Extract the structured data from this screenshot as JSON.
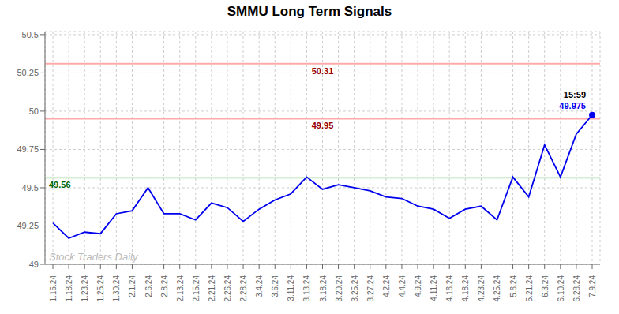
{
  "chart_data": {
    "type": "line",
    "title": "SMMU Long Term Signals",
    "categories": [
      "1.16.24",
      "1.18.24",
      "1.23.24",
      "1.25.24",
      "1.30.24",
      "2.1.24",
      "2.6.24",
      "2.8.24",
      "2.13.24",
      "2.15.24",
      "2.21.24",
      "2.26.24",
      "2.28.24",
      "3.4.24",
      "3.6.24",
      "3.11.24",
      "3.13.24",
      "3.18.24",
      "3.20.24",
      "3.25.24",
      "3.27.24",
      "4.2.24",
      "4.4.24",
      "4.9.24",
      "4.11.24",
      "4.16.24",
      "4.18.24",
      "4.23.24",
      "4.25.24",
      "5.6.24",
      "5.21.24",
      "6.3.24",
      "6.10.24",
      "6.28.24",
      "7.9.24"
    ],
    "values": [
      49.27,
      49.17,
      49.21,
      49.2,
      49.33,
      49.35,
      49.5,
      49.33,
      49.33,
      49.29,
      49.4,
      49.37,
      49.28,
      49.36,
      49.42,
      49.46,
      49.57,
      49.49,
      49.52,
      49.5,
      49.48,
      49.44,
      49.43,
      49.38,
      49.36,
      49.3,
      49.36,
      49.38,
      49.29,
      49.57,
      49.44,
      49.78,
      49.57,
      49.85,
      49.975
    ],
    "color": "#0000ee",
    "ylim": [
      49.0,
      50.52
    ],
    "yticks": [
      49,
      49.25,
      49.5,
      49.75,
      50,
      50.25,
      50.5
    ],
    "grid": true,
    "hlines": [
      {
        "value": 50.31,
        "label": "50.31",
        "color": "#ffaaaa",
        "label_color": "#990000"
      },
      {
        "value": 49.95,
        "label": "49.95",
        "color": "#ffaaaa",
        "label_color": "#990000"
      },
      {
        "value": 49.565,
        "label": "49.56",
        "color": "#aaddaa",
        "label_color": "#006600"
      }
    ],
    "annotations": [
      {
        "text": "15:59",
        "color": "#000000"
      },
      {
        "text": "49.975",
        "color": "#0000ee"
      }
    ],
    "watermark": {
      "text": "Stock Traders Daily",
      "color": "#bbbbbb"
    }
  }
}
